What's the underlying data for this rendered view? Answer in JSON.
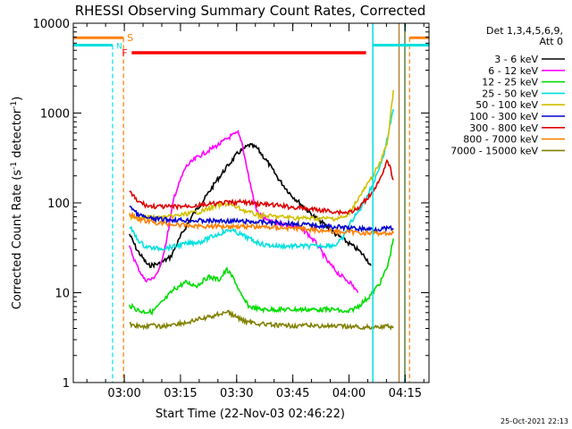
{
  "chart_data": {
    "type": "line",
    "title": "RHESSI Observing Summary Count Rates, Corrected",
    "xlabel": "Start Time (22-Nov-03 02:46:22)",
    "ylabel": "Corrected Count Rate (s⁻¹ detector⁻¹)",
    "ylabel_main": "Corrected Count Rate (s",
    "ylabel_sup1": "-1",
    "ylabel_mid": " detector",
    "ylabel_sup2": "-1",
    "ylabel_end": ")",
    "yscale": "log",
    "ylim": [
      1,
      10000
    ],
    "xlim_minutes": [
      0,
      95
    ],
    "y_ticks": [
      {
        "value": 1,
        "label": "1"
      },
      {
        "value": 10,
        "label": "10"
      },
      {
        "value": 100,
        "label": "100"
      },
      {
        "value": 1000,
        "label": "1000"
      },
      {
        "value": 10000,
        "label": "10000"
      }
    ],
    "x_ticks": [
      {
        "minute": 13.63,
        "label": "03:00"
      },
      {
        "minute": 28.63,
        "label": "03:15"
      },
      {
        "minute": 43.63,
        "label": "03:30"
      },
      {
        "minute": 58.63,
        "label": "03:45"
      },
      {
        "minute": 73.63,
        "label": "04:00"
      },
      {
        "minute": 88.63,
        "label": "04:15"
      }
    ],
    "legend": {
      "placement": "right, outside plot",
      "header_line1": "Det 1,3,4,5,6,9,",
      "header_line2": "Att 0"
    },
    "series": [
      {
        "name": "3 - 6 keV",
        "color": "#000000",
        "points": [
          [
            15,
            45
          ],
          [
            17,
            30
          ],
          [
            20,
            20
          ],
          [
            23,
            21
          ],
          [
            26,
            25
          ],
          [
            29,
            45
          ],
          [
            32,
            75
          ],
          [
            35,
            110
          ],
          [
            38,
            170
          ],
          [
            41,
            250
          ],
          [
            44,
            360
          ],
          [
            47,
            440
          ],
          [
            49,
            410
          ],
          [
            52,
            280
          ],
          [
            55,
            180
          ],
          [
            58,
            125
          ],
          [
            61,
            95
          ],
          [
            64,
            72
          ],
          [
            67,
            58
          ],
          [
            70,
            45
          ],
          [
            73,
            37
          ],
          [
            76,
            30
          ],
          [
            78,
            25
          ],
          [
            79.5,
            20
          ]
        ]
      },
      {
        "name": "6 - 12 keV",
        "color": "#ff00ff",
        "points": [
          [
            15,
            32
          ],
          [
            17,
            20
          ],
          [
            19,
            14
          ],
          [
            21,
            14
          ],
          [
            23,
            18
          ],
          [
            25,
            40
          ],
          [
            27,
            120
          ],
          [
            30,
            250
          ],
          [
            33,
            320
          ],
          [
            36,
            380
          ],
          [
            39,
            450
          ],
          [
            42,
            550
          ],
          [
            44,
            600
          ],
          [
            45,
            480
          ],
          [
            47,
            180
          ],
          [
            49,
            80
          ],
          [
            52,
            62
          ],
          [
            56,
            58
          ],
          [
            59,
            55
          ],
          [
            62,
            48
          ],
          [
            65,
            35
          ],
          [
            68,
            22
          ],
          [
            71,
            16
          ],
          [
            74,
            13
          ],
          [
            76,
            10
          ]
        ]
      },
      {
        "name": "12 - 25 keV",
        "color": "#00dd00",
        "points": [
          [
            15,
            7.2
          ],
          [
            18,
            6.2
          ],
          [
            21,
            6.1
          ],
          [
            24,
            8
          ],
          [
            27,
            11
          ],
          [
            30,
            13
          ],
          [
            33,
            12
          ],
          [
            36,
            15
          ],
          [
            39,
            14
          ],
          [
            41,
            18
          ],
          [
            43,
            14
          ],
          [
            45,
            9
          ],
          [
            47,
            7
          ],
          [
            50,
            6.5
          ],
          [
            55,
            6.5
          ],
          [
            60,
            6.5
          ],
          [
            65,
            6.5
          ],
          [
            70,
            6.5
          ],
          [
            73,
            6
          ],
          [
            76,
            7
          ],
          [
            79,
            9
          ],
          [
            82,
            13
          ],
          [
            84,
            20
          ],
          [
            85.5,
            40
          ]
        ]
      },
      {
        "name": "25 - 50 keV",
        "color": "#00e0e0",
        "points": [
          [
            15,
            55
          ],
          [
            17,
            40
          ],
          [
            19,
            33
          ],
          [
            22,
            31
          ],
          [
            26,
            32
          ],
          [
            30,
            35
          ],
          [
            34,
            37
          ],
          [
            37,
            42
          ],
          [
            40,
            47
          ],
          [
            42,
            50
          ],
          [
            44,
            46
          ],
          [
            46,
            42
          ],
          [
            48,
            38
          ],
          [
            51,
            34
          ],
          [
            55,
            33
          ],
          [
            60,
            33
          ],
          [
            65,
            33
          ],
          [
            70,
            34
          ],
          [
            72,
            40
          ],
          [
            74,
            60
          ],
          [
            77,
            90
          ],
          [
            80,
            160
          ],
          [
            83,
            350
          ],
          [
            85.5,
            1100
          ]
        ]
      },
      {
        "name": "50 - 100 keV",
        "color": "#d2c000",
        "points": [
          [
            15,
            70
          ],
          [
            18,
            70
          ],
          [
            22,
            68
          ],
          [
            26,
            70
          ],
          [
            30,
            75
          ],
          [
            34,
            80
          ],
          [
            38,
            92
          ],
          [
            41,
            98
          ],
          [
            44,
            88
          ],
          [
            47,
            78
          ],
          [
            50,
            72
          ],
          [
            55,
            70
          ],
          [
            60,
            68
          ],
          [
            65,
            67
          ],
          [
            70,
            67
          ],
          [
            73,
            70
          ],
          [
            76,
            110
          ],
          [
            79,
            170
          ],
          [
            82,
            280
          ],
          [
            84,
            500
          ],
          [
            85.5,
            1800
          ]
        ]
      },
      {
        "name": "100 - 300 keV",
        "color": "#0000d0",
        "points": [
          [
            15,
            95
          ],
          [
            17,
            75
          ],
          [
            20,
            67
          ],
          [
            25,
            65
          ],
          [
            30,
            64
          ],
          [
            35,
            63
          ],
          [
            40,
            63
          ],
          [
            45,
            62
          ],
          [
            50,
            61
          ],
          [
            55,
            60
          ],
          [
            60,
            58
          ],
          [
            65,
            56
          ],
          [
            70,
            54
          ],
          [
            75,
            52
          ],
          [
            80,
            51
          ],
          [
            85.5,
            52
          ]
        ]
      },
      {
        "name": "300 - 800 keV",
        "color": "#dd0000",
        "points": [
          [
            15,
            135
          ],
          [
            17,
            105
          ],
          [
            20,
            92
          ],
          [
            25,
            90
          ],
          [
            30,
            92
          ],
          [
            35,
            95
          ],
          [
            40,
            100
          ],
          [
            45,
            102
          ],
          [
            48,
            99
          ],
          [
            51,
            96
          ],
          [
            55,
            93
          ],
          [
            60,
            88
          ],
          [
            65,
            84
          ],
          [
            70,
            80
          ],
          [
            73,
            78
          ],
          [
            76,
            85
          ],
          [
            79,
            120
          ],
          [
            82,
            180
          ],
          [
            84,
            300
          ],
          [
            85.5,
            180
          ]
        ]
      },
      {
        "name": "800 - 7000 keV",
        "color": "#ff8000",
        "points": [
          [
            15,
            75
          ],
          [
            18,
            65
          ],
          [
            22,
            60
          ],
          [
            26,
            58
          ],
          [
            30,
            56
          ],
          [
            35,
            55
          ],
          [
            40,
            55
          ],
          [
            45,
            55
          ],
          [
            50,
            54
          ],
          [
            55,
            53
          ],
          [
            60,
            52
          ],
          [
            65,
            50
          ],
          [
            70,
            48
          ],
          [
            75,
            47
          ],
          [
            80,
            46
          ],
          [
            85.5,
            46
          ]
        ]
      },
      {
        "name": "7000 - 15000 keV",
        "color": "#808000",
        "points": [
          [
            15,
            4.5
          ],
          [
            18,
            4.2
          ],
          [
            21,
            4.3
          ],
          [
            24,
            4.2
          ],
          [
            27,
            4.5
          ],
          [
            30,
            4.6
          ],
          [
            33,
            5
          ],
          [
            36,
            5.3
          ],
          [
            39,
            5.8
          ],
          [
            41,
            6.2
          ],
          [
            43,
            5.5
          ],
          [
            46,
            4.8
          ],
          [
            50,
            4.5
          ],
          [
            55,
            4.3
          ],
          [
            60,
            4.3
          ],
          [
            65,
            4.3
          ],
          [
            70,
            4.2
          ],
          [
            74,
            4.2
          ],
          [
            78,
            4.1
          ],
          [
            82,
            4.2
          ],
          [
            85.5,
            4.2
          ]
        ]
      }
    ],
    "annotations": {
      "s_label": "S",
      "n_label": "N",
      "f_label": "F",
      "n_flag_level": 5700,
      "s_flag_level": 6900,
      "f_bar_level": 4700,
      "f_bar_minutes": [
        15.6,
        78.2
      ],
      "cyan_dashed_minute": 10.5,
      "orange_dashed_minutes": [
        13.4,
        89.8
      ],
      "cyan_solid_minutes": [
        80,
        88.5
      ],
      "brown_solid_minutes": [
        87,
        88.6
      ],
      "bar_color_s": "#ff8000",
      "bar_color_n": "#00e0e0",
      "bar_color_f": "#ff0000"
    }
  },
  "footer_timestamp": "25-Oct-2021 22:13"
}
